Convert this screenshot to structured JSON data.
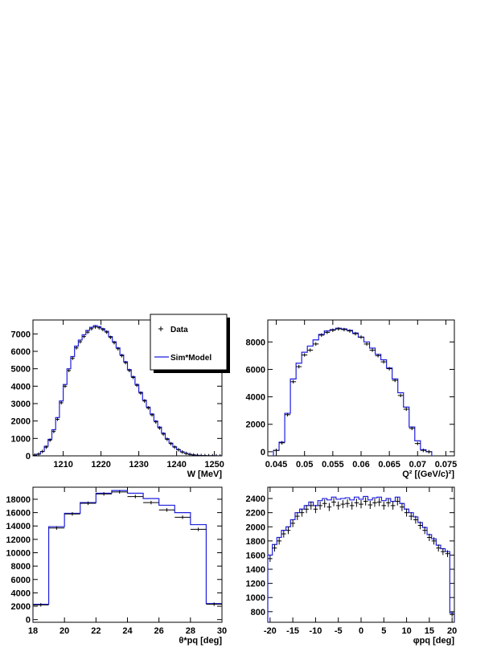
{
  "colors": {
    "data": "#000000",
    "model": "#1f1fe0",
    "frame": "#000000",
    "shadow": "#000000"
  },
  "legend": {
    "data_label": "Data",
    "model_label": "Sim*Model",
    "placement": "top-right of panel 1"
  },
  "chart_data": [
    {
      "type": "line",
      "panel": "W",
      "xlabel": "W [MeV]",
      "ylabel": "",
      "xlim": [
        1202,
        1252
      ],
      "ylim": [
        0,
        7800
      ],
      "xticks": [
        1210,
        1220,
        1230,
        1240,
        1250
      ],
      "xtick_labels": [
        "1210",
        "1220",
        "1230",
        "1240",
        "1250"
      ],
      "yticks": [
        0,
        1000,
        2000,
        3000,
        4000,
        5000,
        6000,
        7000
      ],
      "ytick_labels": [
        "0",
        "1000",
        "2000",
        "3000",
        "4000",
        "5000",
        "6000",
        "7000"
      ],
      "x_start": 1202,
      "bin_width": 1,
      "series": [
        {
          "name": "Data",
          "style": "points",
          "values": [
            50,
            100,
            250,
            500,
            900,
            1400,
            2100,
            3050,
            4000,
            4900,
            5600,
            6200,
            6550,
            6850,
            7100,
            7300,
            7400,
            7350,
            7250,
            7100,
            6800,
            6500,
            6150,
            5750,
            5350,
            4900,
            4500,
            4050,
            3600,
            3150,
            2750,
            2350,
            1950,
            1600,
            1250,
            950,
            700,
            500,
            350,
            220,
            140,
            80,
            50,
            30,
            15,
            10,
            5,
            5,
            0,
            0
          ]
        },
        {
          "name": "Sim*Model",
          "style": "step",
          "values": [
            50,
            100,
            250,
            550,
            950,
            1500,
            2200,
            3150,
            4100,
            5000,
            5700,
            6300,
            6650,
            6950,
            7200,
            7380,
            7480,
            7420,
            7300,
            7150,
            6850,
            6550,
            6200,
            5800,
            5400,
            4950,
            4550,
            4100,
            3650,
            3200,
            2800,
            2400,
            2000,
            1650,
            1300,
            980,
            730,
            520,
            360,
            230,
            150,
            90,
            55,
            30,
            15,
            10,
            5,
            5,
            0,
            0
          ]
        }
      ]
    },
    {
      "type": "line",
      "panel": "Q2",
      "xlabel": "Q² [(GeV/c)²]",
      "ylabel": "",
      "xlim": [
        0.0435,
        0.0765
      ],
      "ylim": [
        -300,
        9600
      ],
      "xticks": [
        0.045,
        0.05,
        0.055,
        0.06,
        0.065,
        0.07,
        0.075
      ],
      "xtick_labels": [
        "0.045",
        "0.05",
        "0.055",
        "0.06",
        "0.065",
        "0.07",
        "0.075"
      ],
      "yticks": [
        0,
        2000,
        4000,
        6000,
        8000
      ],
      "ytick_labels": [
        "0",
        "2000",
        "4000",
        "6000",
        "8000"
      ],
      "x_start": 0.0445,
      "bin_width": 0.001,
      "series": [
        {
          "name": "Data",
          "style": "points",
          "values": [
            100,
            650,
            2700,
            5100,
            6200,
            7050,
            7400,
            7850,
            8500,
            8700,
            8850,
            8950,
            8900,
            8800,
            8600,
            8350,
            7850,
            7400,
            7000,
            6550,
            6050,
            5200,
            4100,
            3100,
            1700,
            600,
            100,
            0
          ]
        },
        {
          "name": "Sim*Model",
          "style": "step",
          "values": [
            100,
            700,
            2800,
            5300,
            6450,
            7250,
            7700,
            8150,
            8550,
            8800,
            8900,
            9000,
            8950,
            8850,
            8650,
            8350,
            8000,
            7550,
            7100,
            6700,
            6100,
            5300,
            4300,
            3250,
            1800,
            800,
            150,
            0
          ]
        }
      ]
    },
    {
      "type": "line",
      "panel": "theta",
      "xlabel": "θ*pq [deg]",
      "ylabel": "",
      "xlim": [
        18,
        30
      ],
      "ylim": [
        -400,
        19800
      ],
      "xticks": [
        18,
        20,
        22,
        24,
        26,
        28,
        30
      ],
      "xtick_labels": [
        "18",
        "20",
        "22",
        "24",
        "26",
        "28",
        "30"
      ],
      "yticks": [
        0,
        2000,
        4000,
        6000,
        8000,
        10000,
        12000,
        14000,
        16000,
        18000
      ],
      "ytick_labels": [
        "0",
        "2000",
        "4000",
        "6000",
        "8000",
        "10000",
        "12000",
        "14000",
        "16000",
        "18000"
      ],
      "x_start": 18,
      "bin_width": 1,
      "series": [
        {
          "name": "Data",
          "style": "points",
          "values": [
            2200,
            13700,
            15800,
            17400,
            18800,
            19100,
            18400,
            17500,
            16400,
            15300,
            13500,
            2300
          ]
        },
        {
          "name": "Sim*Model",
          "style": "step",
          "values": [
            2300,
            13900,
            15900,
            17500,
            18900,
            19300,
            18900,
            18100,
            17100,
            16000,
            14200,
            2400
          ]
        }
      ]
    },
    {
      "type": "line",
      "panel": "phi",
      "xlabel": "φpq [deg]",
      "ylabel": "",
      "xlim": [
        -20.5,
        20.5
      ],
      "ylim": [
        650,
        2560
      ],
      "xticks": [
        -20,
        -15,
        -10,
        -5,
        0,
        5,
        10,
        15,
        20
      ],
      "xtick_labels": [
        "-20",
        "-15",
        "-10",
        "-5",
        "0",
        "5",
        "10",
        "15",
        "20"
      ],
      "yticks": [
        800,
        1000,
        1200,
        1400,
        1600,
        1800,
        2000,
        2200,
        2400
      ],
      "ytick_labels": [
        "800",
        "1000",
        "1200",
        "1400",
        "1600",
        "1800",
        "2000",
        "2200",
        "2400"
      ],
      "x_start": -20.5,
      "bin_width": 1,
      "series": [
        {
          "name": "Data",
          "style": "points",
          "values": [
            1550,
            1700,
            1800,
            1900,
            1950,
            2050,
            2150,
            2200,
            2250,
            2300,
            2250,
            2300,
            2330,
            2280,
            2350,
            2300,
            2320,
            2330,
            2300,
            2340,
            2320,
            2360,
            2310,
            2340,
            2350,
            2300,
            2340,
            2300,
            2360,
            2280,
            2200,
            2150,
            2100,
            2020,
            1950,
            1850,
            1800,
            1700,
            1650,
            1620,
            760
          ]
        },
        {
          "name": "Sim*Model",
          "style": "step",
          "values": [
            1600,
            1750,
            1850,
            1950,
            2000,
            2100,
            2200,
            2250,
            2300,
            2350,
            2300,
            2370,
            2400,
            2380,
            2420,
            2390,
            2400,
            2410,
            2380,
            2420,
            2390,
            2430,
            2380,
            2410,
            2420,
            2370,
            2400,
            2360,
            2420,
            2330,
            2250,
            2200,
            2140,
            2060,
            1990,
            1890,
            1830,
            1740,
            1690,
            1650,
            780
          ]
        }
      ]
    }
  ]
}
